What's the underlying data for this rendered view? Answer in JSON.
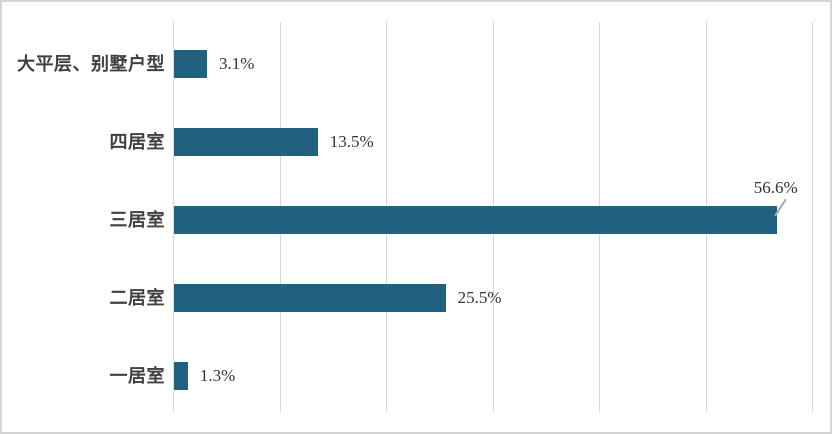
{
  "frame": {
    "background": "#ffffff",
    "border_color": "#d4d4d4"
  },
  "chart_data": {
    "type": "bar",
    "orientation": "horizontal",
    "title": "",
    "xlabel": "",
    "ylabel": "",
    "categories": [
      "大平层、别墅户型",
      "四居室",
      "三居室",
      "二居室",
      "一居室"
    ],
    "values": [
      3.1,
      13.5,
      56.6,
      25.5,
      1.3
    ],
    "value_labels": [
      "3.1%",
      "13.5%",
      "56.6%",
      "25.5%",
      "1.3%"
    ],
    "xlim": [
      0,
      60
    ],
    "grid": true,
    "grid_interval": 10,
    "tick_labels_visible": false,
    "legend": "none",
    "bar_color": "#1F617F",
    "gridline_color": "#D9D9D9",
    "category_label_color": "#404040",
    "value_label_color": "#333333",
    "leader_line_color": "#A8A8A8",
    "annotation": {
      "category": "三居室",
      "label": "56.6%",
      "placement": "above-bar-end",
      "leader_line": true
    }
  }
}
